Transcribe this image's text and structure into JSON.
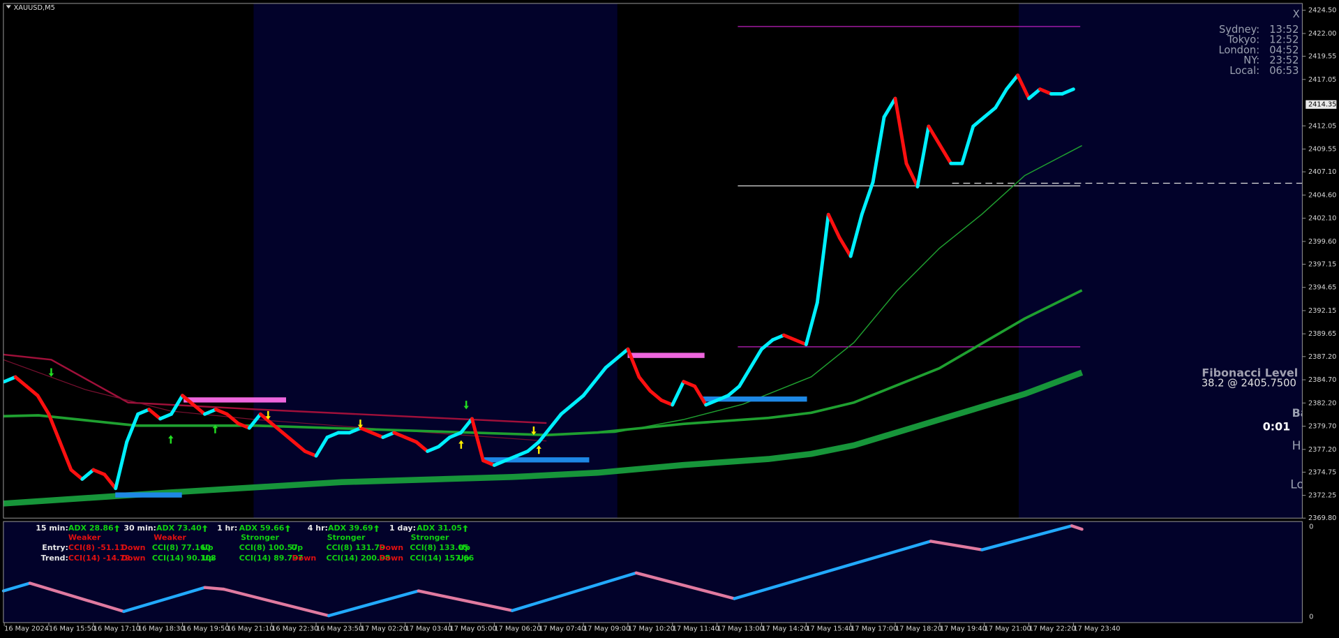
{
  "chart_data": {
    "type": "candlestick",
    "title": "XAUUSD,M5",
    "categories": [
      "16 May 2024",
      null,
      null,
      null,
      "16 May 15:50",
      null,
      null,
      null,
      "16 May 17:10",
      null,
      null,
      null,
      "16 May 18:30",
      null,
      null,
      null,
      "16 May 19:50",
      null,
      null,
      null,
      "16 May 21:10",
      null,
      null,
      null,
      "16 May 22:30",
      null,
      null,
      null,
      "16 May 23:50",
      null,
      null,
      null,
      "17 May 02:20",
      null,
      null,
      null,
      "17 May 03:40",
      null,
      null,
      null,
      "17 May 05:00",
      null,
      null,
      null,
      "17 May 06:20",
      null,
      null,
      null,
      "17 May 07:40",
      null,
      null,
      null,
      "17 May 09:00",
      null,
      null,
      null,
      "17 May 10:20",
      null,
      null,
      null,
      "17 May 11:40",
      null,
      null,
      null,
      "17 May 13:00",
      null,
      null,
      null,
      "17 May 14:20",
      null,
      null,
      null,
      "17 May 15:40",
      null,
      null,
      null,
      "17 May 17:00",
      null,
      null,
      null,
      "17 May 18:20",
      null,
      null,
      null,
      "17 May 19:40",
      null,
      null,
      null,
      "17 May 21:00",
      null,
      null,
      null,
      "17 May 22:20",
      null,
      null,
      null,
      "17 May 23:40"
    ],
    "values": [
      2384.5,
      2385,
      2384,
      2383,
      2381,
      2378,
      2375,
      2374,
      2375,
      2374.5,
      2373,
      2378,
      2381,
      2381.5,
      2380.5,
      2381,
      2383,
      2382,
      2381,
      2381.5,
      2381,
      2380,
      2379.5,
      2381,
      2380,
      2379,
      2378,
      2377,
      2376.5,
      2378.5,
      2379,
      2379,
      2379.5,
      2379,
      2378.5,
      2379,
      2378.5,
      2378,
      2377,
      2377.5,
      2378.5,
      2379,
      2380.5,
      2376,
      2375.5,
      2376,
      2376.5,
      2377,
      2378,
      2379.5,
      2381,
      2382,
      2383,
      2384.5,
      2386,
      2387,
      2388,
      2385,
      2383.5,
      2382.5,
      2382,
      2384.5,
      2384,
      2382,
      2382.5,
      2383,
      2384,
      2386,
      2388,
      2389,
      2389.5,
      2389,
      2388.5,
      2393,
      2402.5,
      2400,
      2398,
      2402.5,
      2406,
      2413,
      2415,
      2408,
      2405.5,
      2412,
      2410,
      2408,
      2408,
      2412,
      2413,
      2414,
      2416,
      2417.5,
      2415,
      2416,
      2415.5,
      2415.5,
      2416
    ],
    "up_color": "#00f0ff",
    "down_color": "#ff1010",
    "ylim": [
      2369.8,
      2424.5
    ],
    "yticks": [
      {
        "value": 2369.8,
        "label": "2369.80"
      },
      2372.25,
      2374.75,
      {
        "value": 2377.2,
        "label": "2377.20"
      },
      {
        "value": 2379.7,
        "label": "2379.70"
      },
      {
        "value": 2382.2,
        "label": "2382.20"
      },
      {
        "value": 2384.7,
        "label": "2384.70"
      },
      {
        "value": 2387.2,
        "label": "2387.20"
      },
      2389.65,
      2392.15,
      2394.65,
      2397.15,
      {
        "value": 2399.6,
        "label": "2399.60"
      },
      {
        "value": 2402.1,
        "label": "2402.10"
      },
      {
        "value": 2404.6,
        "label": "2404.60"
      },
      {
        "value": 2407.1,
        "label": "2407.10"
      },
      2409.55,
      2412.05,
      2417.05,
      2419.55,
      {
        "value": 2422,
        "label": "2422.00"
      },
      {
        "value": 2424.5,
        "label": "2424.50"
      }
    ],
    "current_price": 2414.35
  },
  "indicator_axis": {
    "top": "0",
    "bottom": "0"
  },
  "mtf_panel": {
    "entry_label": "Entry:",
    "trend_label": "Trend:",
    "timeframes": [
      {
        "name": "15 min:",
        "adx": "ADX 28.86",
        "strength": "Weaker",
        "entry": "CCI(8) -51.11",
        "entry_direction": "Down",
        "trend": "CCI(14) -14.79",
        "trend_direction": "Down"
      },
      {
        "name": "30 min:",
        "adx": "ADX 73.40",
        "strength": "Weaker",
        "entry": "CCI(8) 77.160",
        "entry_direction": "Up",
        "trend": "CCI(14) 90.108",
        "trend_direction": "Up"
      },
      {
        "name": "1 hr:",
        "adx": "ADX 59.66",
        "strength": "Stronger",
        "entry": "CCI(8) 100.57",
        "entry_direction": "Up",
        "trend": "CCI(14) 89.797",
        "trend_direction": "Down"
      },
      {
        "name": "4 hr:",
        "adx": "ADX 39.69",
        "strength": "Stronger",
        "entry": "CCI(8) 131.79",
        "entry_direction": "Down",
        "trend": "CCI(14) 200.98",
        "trend_direction": "Down"
      },
      {
        "name": "1 day:",
        "adx": "ADX 31.05",
        "strength": "Stronger",
        "entry": "CCI(8) 133.05",
        "entry_direction": "Up",
        "trend": "CCI(14) 157.66",
        "trend_direction": "Up"
      }
    ]
  },
  "sessions": [
    {
      "city": "Sydney:",
      "time": "13:52"
    },
    {
      "city": "Tokyo:",
      "time": "12:52"
    },
    {
      "city": "London:",
      "time": "04:52"
    },
    {
      "city": "NY:",
      "time": "23:52"
    },
    {
      "city": "Local:",
      "time": "06:53"
    }
  ],
  "fibonacci": {
    "title": "Fibonacci Level",
    "level": "38.2 @ 2405.7500"
  },
  "timer": "0:01",
  "close_button": "X",
  "partial_labels": [
    "Ba",
    "Hi",
    "Lo"
  ]
}
